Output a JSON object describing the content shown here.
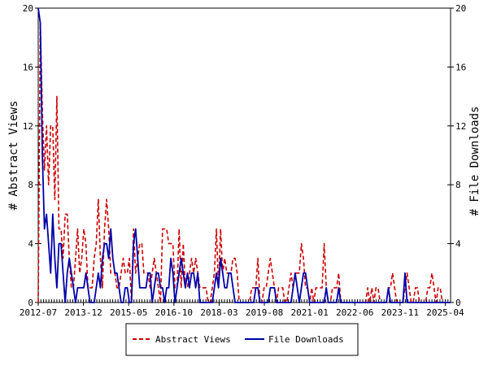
{
  "chart_data": {
    "type": "line",
    "ylabel_left": "# Abstract Views",
    "ylabel_right": "# File Downloads",
    "ylim": [
      0,
      20
    ],
    "y_ticks": [
      0,
      4,
      8,
      12,
      16,
      20
    ],
    "x_start": "2012-07",
    "x_end": "2025-06",
    "x_tick_labels": [
      "2012-07",
      "2013-12",
      "2015-05",
      "2016-10",
      "2018-03",
      "2019-08",
      "2021-01",
      "2022-06",
      "2023-11",
      "2025-04"
    ],
    "grid": false,
    "legend_position": "bottom-center",
    "series": [
      {
        "name": "Abstract Views",
        "color": "#cc0000",
        "style": "dashed",
        "values": [
          0,
          19,
          13,
          9,
          12,
          8,
          12,
          12,
          7,
          14,
          5,
          5,
          3,
          6,
          6,
          3,
          1,
          1,
          3,
          5,
          2,
          3,
          5,
          4,
          1,
          1,
          1,
          3,
          4,
          7,
          3,
          1,
          5,
          7,
          5,
          2,
          2,
          2,
          1,
          1,
          2,
          3,
          2,
          2,
          3,
          0,
          5,
          2,
          3,
          4,
          4,
          2,
          2,
          2,
          1,
          2,
          3,
          2,
          1,
          0,
          5,
          5,
          5,
          4,
          4,
          4,
          1,
          1,
          5,
          1,
          4,
          1,
          1,
          2,
          3,
          2,
          3,
          2,
          1,
          1,
          1,
          1,
          0,
          0,
          1,
          2,
          5,
          1,
          5,
          2,
          3,
          2,
          2,
          2,
          3,
          3,
          2,
          0,
          0,
          0,
          0,
          0,
          0,
          1,
          1,
          1,
          3,
          0,
          0,
          1,
          1,
          2,
          3,
          2,
          1,
          0,
          1,
          1,
          1,
          0,
          0,
          1,
          2,
          1,
          2,
          2,
          2,
          4,
          3,
          1,
          1,
          0,
          1,
          0,
          1,
          1,
          1,
          1,
          4,
          1,
          0,
          0,
          1,
          1,
          1,
          2,
          0,
          0,
          0,
          0,
          0,
          0,
          0,
          0,
          0,
          0,
          0,
          0,
          0,
          1,
          0,
          1,
          0,
          1,
          1,
          0,
          0,
          0,
          0,
          1,
          1,
          2,
          1,
          0,
          0,
          0,
          0,
          1,
          2,
          1,
          0,
          0,
          1,
          1,
          0,
          0,
          0,
          0,
          1,
          1,
          2,
          1,
          0,
          1,
          1,
          0,
          0,
          0,
          0,
          0
        ]
      },
      {
        "name": "File Downloads",
        "color": "#0000aa",
        "style": "solid",
        "values": [
          20,
          19,
          10,
          5,
          6,
          4,
          2,
          6,
          3,
          1,
          4,
          4,
          2,
          0,
          2,
          3,
          2,
          1,
          0,
          1,
          1,
          1,
          1,
          2,
          1,
          0,
          0,
          0,
          1,
          2,
          1,
          3,
          4,
          4,
          3,
          5,
          3,
          2,
          2,
          1,
          0,
          0,
          1,
          1,
          0,
          0,
          4,
          5,
          3,
          1,
          1,
          1,
          1,
          2,
          2,
          0,
          1,
          2,
          2,
          1,
          1,
          0,
          1,
          1,
          3,
          2,
          0,
          1,
          2,
          3,
          2,
          1,
          2,
          1,
          2,
          2,
          1,
          2,
          0,
          0,
          0,
          0,
          0,
          0,
          0,
          1,
          2,
          1,
          3,
          2,
          1,
          1,
          2,
          2,
          1,
          0,
          0,
          0,
          0,
          0,
          0,
          0,
          0,
          0,
          0,
          1,
          1,
          0,
          0,
          0,
          0,
          0,
          1,
          1,
          1,
          0,
          0,
          0,
          0,
          0,
          0,
          0,
          0,
          1,
          2,
          1,
          0,
          1,
          2,
          2,
          1,
          0,
          0,
          0,
          0,
          0,
          0,
          0,
          0,
          1,
          0,
          0,
          0,
          0,
          0,
          1,
          0,
          0,
          0,
          0,
          0,
          0,
          0,
          0,
          0,
          0,
          0,
          0,
          0,
          0,
          0,
          0,
          0,
          0,
          0,
          0,
          0,
          0,
          0,
          1,
          0,
          0,
          0,
          0,
          0,
          0,
          0,
          2,
          0,
          0,
          0,
          0,
          0,
          0,
          0,
          0,
          0,
          0,
          0,
          0,
          0,
          0,
          0,
          0,
          0,
          0,
          0,
          0,
          0,
          0
        ]
      }
    ]
  },
  "legend": {
    "items": [
      {
        "label": "Abstract Views",
        "color": "#cc0000",
        "style": "dashed"
      },
      {
        "label": "File Downloads",
        "color": "#0000aa",
        "style": "solid"
      }
    ]
  }
}
